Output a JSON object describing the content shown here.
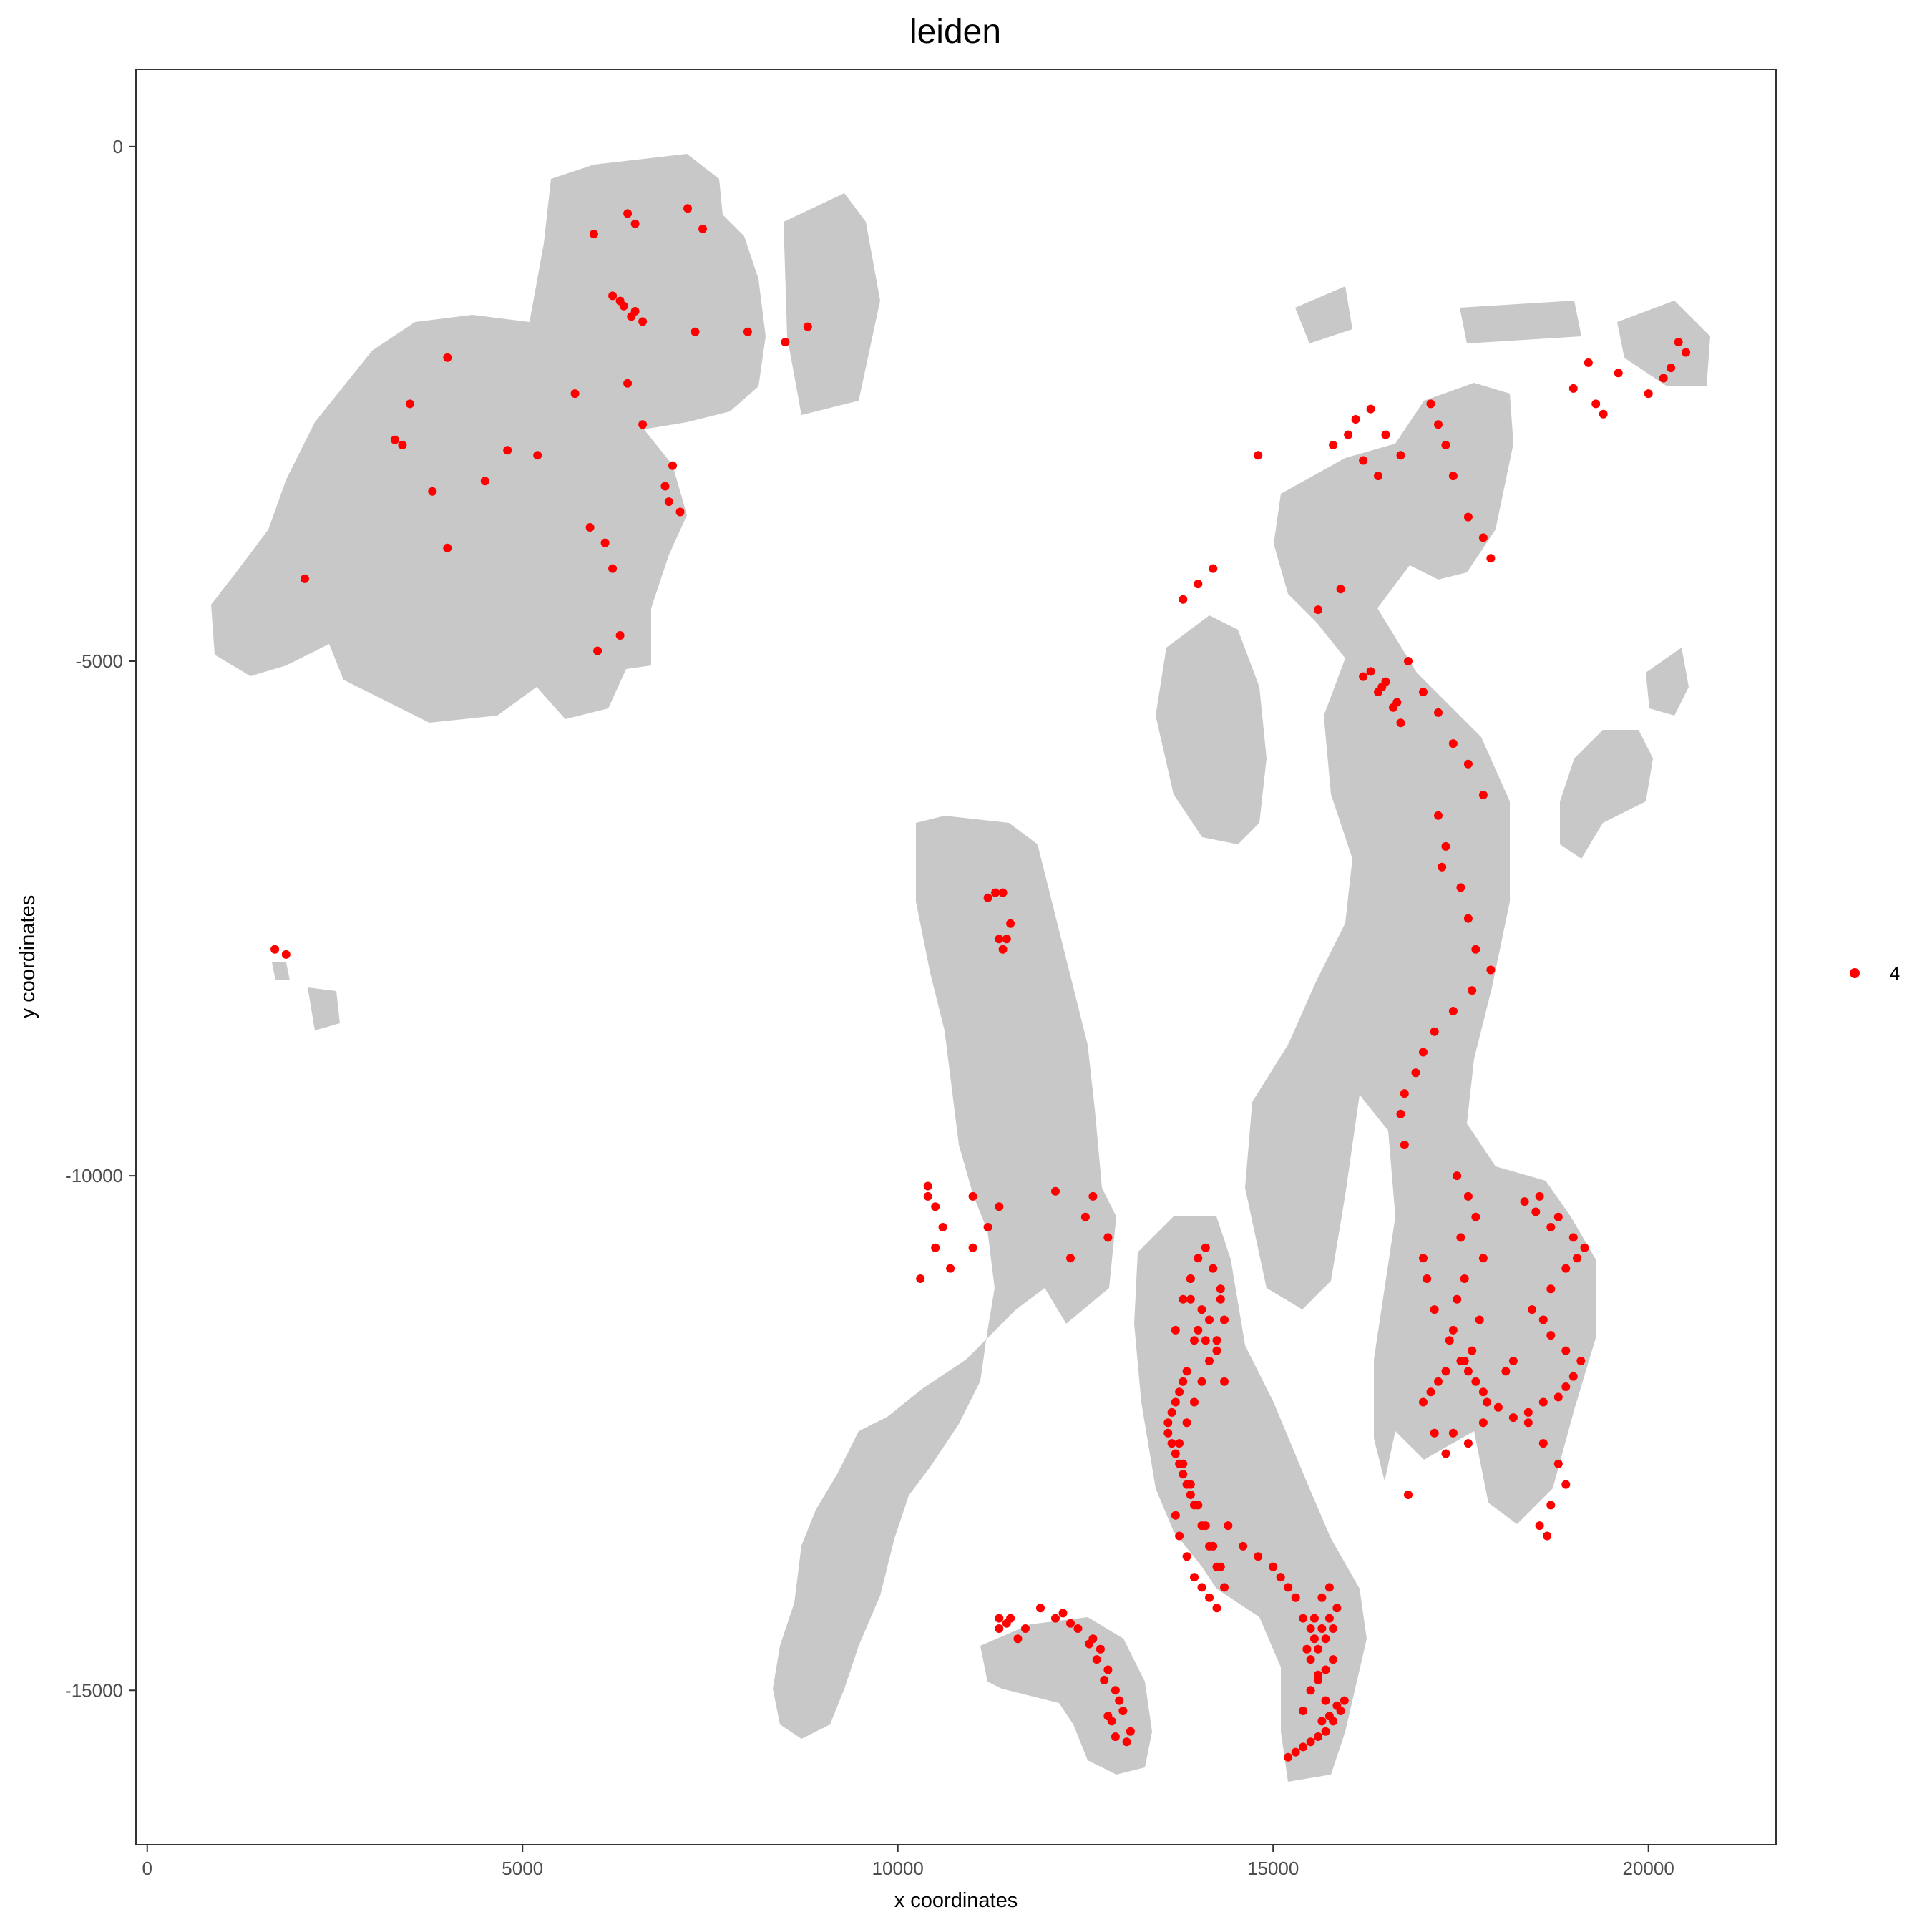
{
  "chart_data": {
    "type": "scatter",
    "title": "leiden",
    "xlabel": "x coordinates",
    "ylabel": "y coordinates",
    "xlim": [
      -150,
      21700
    ],
    "ylim": [
      -16500,
      750
    ],
    "x_ticks": [
      0,
      5000,
      10000,
      15000,
      20000
    ],
    "x_tick_labels": [
      "0",
      "5000",
      "10000",
      "15000",
      "20000"
    ],
    "y_ticks": [
      0,
      -5000,
      -10000,
      -15000
    ],
    "y_tick_labels": [
      "0",
      "-5000",
      "-10000",
      "-15000"
    ],
    "grid": false,
    "legend_position": "right",
    "background_color": "#c8c8c8",
    "series": [
      {
        "name": "4",
        "color": "#ff0000",
        "x": [
          6400,
          6500,
          6300,
          6500,
          6600,
          6200,
          6450,
          6350,
          5950,
          7200,
          7400,
          4000,
          3500,
          3300,
          3400,
          3800,
          4800,
          4500,
          5700,
          6900,
          6950,
          7100,
          7000,
          6100,
          5900,
          6200,
          6300,
          5200,
          4000,
          2100,
          1700,
          1850,
          6000,
          6400,
          6600,
          7300,
          8000,
          8500,
          8800,
          16800,
          17000,
          17200,
          17400,
          17600,
          17800,
          17200,
          17300,
          17250,
          17500,
          17600,
          17700,
          17900,
          17650,
          17400,
          17150,
          17000,
          16900,
          16750,
          16700,
          16750,
          17450,
          17600,
          17700,
          17500,
          17800,
          17550,
          17450,
          17750,
          17400,
          17650,
          17500,
          17300,
          17200,
          17100,
          17000,
          17000,
          17050,
          17150,
          17350,
          17600,
          17800,
          18000,
          18200,
          18400,
          18600,
          18800,
          18900,
          19000,
          19100,
          18900,
          18700,
          18600,
          18450,
          18700,
          18900,
          19050,
          19150,
          18700,
          18500,
          18350,
          18550,
          18800,
          19000,
          18200,
          18100,
          18400,
          17400,
          17600,
          17800,
          17850,
          17700,
          17550,
          17300,
          17150,
          18600,
          18800,
          18900,
          18700,
          18550,
          18650,
          16800,
          16300,
          16500,
          16650,
          16700,
          16200,
          16400,
          16600,
          16450,
          14000,
          14100,
          14200,
          14300,
          13900,
          13800,
          13700,
          14050,
          14150,
          14250,
          13950,
          13850,
          14350,
          13750,
          13650,
          13600,
          13700,
          13800,
          13900,
          13700,
          13750,
          13850,
          13950,
          14050,
          14150,
          14250,
          14300,
          14200,
          14100,
          14000,
          13900,
          13800,
          13750,
          13850,
          13950,
          14050,
          14150,
          14250,
          14350,
          14300,
          13900,
          13800,
          13700,
          13600,
          13650,
          13750,
          13850,
          13950,
          14050,
          14150,
          14250,
          14350,
          14000,
          14100,
          13900,
          15200,
          15300,
          15400,
          15500,
          15600,
          15700,
          15800,
          15900,
          15400,
          15500,
          15600,
          15700,
          15800,
          15450,
          15550,
          15650,
          15750,
          15850,
          15500,
          15600,
          15700,
          15800,
          15550,
          15650,
          15750,
          15600,
          15700,
          15500,
          15400,
          15300,
          15200,
          15100,
          15000,
          14800,
          14600,
          14400,
          15650,
          15750,
          15850,
          15950,
          11500,
          11900,
          12200,
          12400,
          12600,
          12700,
          12800,
          12900,
          13000,
          13100,
          12850,
          12950,
          12750,
          12650,
          12550,
          13050,
          12300,
          12100,
          11700,
          11350,
          11600,
          11350,
          11450,
          12800,
          12900,
          11500,
          11400,
          11450,
          10400,
          10500,
          10600,
          11000,
          11200,
          11350,
          11000,
          10700,
          10300,
          12300,
          12800,
          12500,
          12600,
          12100,
          11200,
          11300,
          11400,
          11350,
          10400,
          10500,
          17100,
          17200,
          17300,
          17400,
          17600,
          17800,
          17900,
          20400,
          20500,
          20300,
          20200,
          20000,
          19600,
          19200,
          19000,
          19300,
          19400,
          16300,
          16500,
          16700,
          15900,
          14800,
          15600,
          16100,
          16000,
          15800,
          16200,
          16400,
          14200,
          14000,
          13800
        ],
        "y": [
          -650,
          -750,
          -1500,
          -1600,
          -1700,
          -1450,
          -1650,
          -1550,
          -850,
          -600,
          -800,
          -2050,
          -2500,
          -2850,
          -2900,
          -3350,
          -2950,
          -3250,
          -2400,
          -3300,
          -3450,
          -3550,
          -3100,
          -3850,
          -3700,
          -4100,
          -4750,
          -3000,
          -3900,
          -4200,
          -7800,
          -7850,
          -4900,
          -2300,
          -2700,
          -1800,
          -1800,
          -1900,
          -1750,
          -5000,
          -5300,
          -5500,
          -5800,
          -6000,
          -6300,
          -6500,
          -6800,
          -7000,
          -7200,
          -7500,
          -7800,
          -8000,
          -8200,
          -8400,
          -8600,
          -8800,
          -9000,
          -9200,
          -9400,
          -9700,
          -10000,
          -10200,
          -10400,
          -10600,
          -10800,
          -11000,
          -11200,
          -11400,
          -11500,
          -11700,
          -11800,
          -11900,
          -12000,
          -12100,
          -12200,
          -10800,
          -11000,
          -11300,
          -11600,
          -11900,
          -12100,
          -12250,
          -12350,
          -12300,
          -12200,
          -12150,
          -12050,
          -11950,
          -11800,
          -11700,
          -11550,
          -11400,
          -11300,
          -11100,
          -10900,
          -10800,
          -10700,
          -10500,
          -10350,
          -10250,
          -10200,
          -10400,
          -10600,
          -11800,
          -11900,
          -12400,
          -12500,
          -12600,
          -12400,
          -12200,
          -12000,
          -11800,
          -12700,
          -12500,
          -12600,
          -12800,
          -13000,
          -13200,
          -13400,
          -13500,
          -13100,
          -5100,
          -5200,
          -5400,
          -5600,
          -5150,
          -5300,
          -5450,
          -5250,
          -10800,
          -10700,
          -10900,
          -11100,
          -11000,
          -11200,
          -11500,
          -11300,
          -11400,
          -11700,
          -11600,
          -11900,
          -12000,
          -12100,
          -12300,
          -12500,
          -12700,
          -12900,
          -13100,
          -13300,
          -13500,
          -13700,
          -13900,
          -14000,
          -14100,
          -14200,
          -13800,
          -13600,
          -13400,
          -13200,
          -13000,
          -12800,
          -12600,
          -12400,
          -12200,
          -12000,
          -11800,
          -11600,
          -11400,
          -11200,
          -11000,
          -12000,
          -12200,
          -12400,
          -12600,
          -12800,
          -13000,
          -13200,
          -13400,
          -13600,
          -13800,
          -14000,
          -11500,
          -11600,
          -11200,
          -15650,
          -15600,
          -15550,
          -15500,
          -15450,
          -15400,
          -15300,
          -15200,
          -15200,
          -15000,
          -14900,
          -14800,
          -14700,
          -14600,
          -14500,
          -14400,
          -14300,
          -14200,
          -14700,
          -14600,
          -14500,
          -14400,
          -14300,
          -14100,
          -14000,
          -14850,
          -15100,
          -14400,
          -14300,
          -14100,
          -14000,
          -13900,
          -13800,
          -13700,
          -13600,
          -13400,
          -15300,
          -15250,
          -15150,
          -15100,
          -14300,
          -14200,
          -14250,
          -14400,
          -14500,
          -14600,
          -14800,
          -15000,
          -15200,
          -15400,
          -15300,
          -15100,
          -14900,
          -14700,
          -14550,
          -15500,
          -14350,
          -14300,
          -14400,
          -14300,
          -14500,
          -14400,
          -14350,
          -15250,
          -15450,
          -7550,
          -7800,
          -7700,
          -10100,
          -10300,
          -10500,
          -10700,
          -10500,
          -10300,
          -10200,
          -10900,
          -11000,
          -10800,
          -10600,
          -10400,
          -10200,
          -10150,
          -7300,
          -7250,
          -7250,
          -7700,
          -10200,
          -10700,
          -2500,
          -2700,
          -2900,
          -3200,
          -3600,
          -3800,
          -4000,
          -1900,
          -2000,
          -2150,
          -2250,
          -2400,
          -2200,
          -2100,
          -2350,
          -2500,
          -2600,
          -2550,
          -2800,
          -3000,
          -4300,
          -3000,
          -4500,
          -2650,
          -2800,
          -2900,
          -3050,
          -3200,
          -4100,
          -4250,
          -4400
        ]
      }
    ]
  }
}
